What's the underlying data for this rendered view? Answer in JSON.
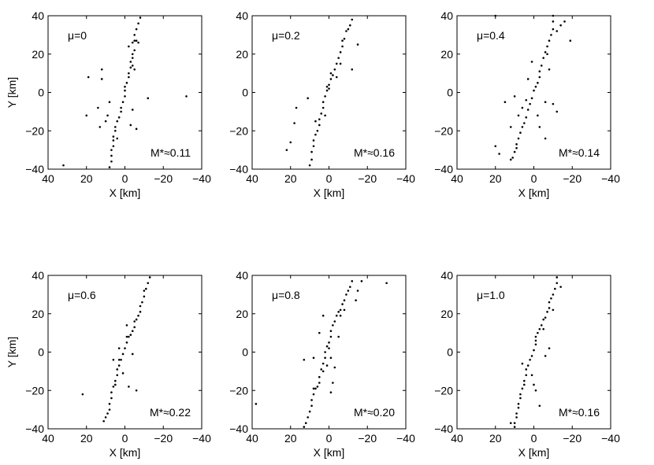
{
  "chart_data": [
    {
      "type": "scatter",
      "annotation_mu": "μ=0",
      "annotation_m": "M*≈0.11",
      "xlabel": "X [km]",
      "ylabel": "Y [km]",
      "xlim": [
        40,
        -40
      ],
      "ylim": [
        -40,
        40
      ],
      "xticks": [
        "40",
        "20",
        "0",
        "−20",
        "−40"
      ],
      "yticks": [
        "40",
        "20",
        "0",
        "−20",
        "−40"
      ],
      "points": [
        [
          -8,
          39
        ],
        [
          -7,
          36
        ],
        [
          -6,
          33
        ],
        [
          -5,
          30
        ],
        [
          -6,
          27
        ],
        [
          -5,
          27
        ],
        [
          -7,
          26
        ],
        [
          -4,
          26
        ],
        [
          -5,
          22
        ],
        [
          -4,
          20
        ],
        [
          -4,
          18
        ],
        [
          -3,
          16
        ],
        [
          -4,
          14
        ],
        [
          -3,
          13
        ],
        [
          -2,
          10
        ],
        [
          -2,
          8
        ],
        [
          -1,
          5
        ],
        [
          0,
          3
        ],
        [
          0,
          1
        ],
        [
          0,
          -2
        ],
        [
          1,
          -5
        ],
        [
          2,
          -8
        ],
        [
          2,
          -10
        ],
        [
          3,
          -13
        ],
        [
          4,
          -15
        ],
        [
          5,
          -18
        ],
        [
          5,
          -20
        ],
        [
          6,
          -23
        ],
        [
          6,
          -25
        ],
        [
          6,
          -28
        ],
        [
          7,
          -30
        ],
        [
          7,
          -33
        ],
        [
          7,
          -36
        ],
        [
          8,
          -39
        ],
        [
          -5,
          12
        ],
        [
          -2,
          24
        ],
        [
          8,
          -5
        ],
        [
          9,
          -12
        ],
        [
          10,
          -15
        ],
        [
          12,
          12
        ],
        [
          14,
          -8
        ],
        [
          13,
          -18
        ],
        [
          19,
          8
        ],
        [
          20,
          -12
        ],
        [
          12,
          7
        ],
        [
          -12,
          -3
        ],
        [
          -32,
          -2
        ],
        [
          -3,
          -17
        ],
        [
          -6,
          -19
        ],
        [
          -4,
          -9
        ],
        [
          32,
          -38
        ],
        [
          4,
          -24
        ]
      ],
      "grid": false,
      "legend": "none"
    },
    {
      "type": "scatter",
      "annotation_mu": "μ=0.2",
      "annotation_m": "M*≈0.16",
      "xlabel": "X [km]",
      "ylabel": "Y [km]",
      "xlim": [
        40,
        -40
      ],
      "ylim": [
        -40,
        40
      ],
      "xticks": [
        "40",
        "20",
        "0",
        "−20",
        "−40"
      ],
      "yticks": [
        "40",
        "20",
        "0",
        "−20",
        "−40"
      ],
      "points": [
        [
          -12,
          38
        ],
        [
          -11,
          35
        ],
        [
          -9,
          32
        ],
        [
          -8,
          28
        ],
        [
          -7,
          27
        ],
        [
          -7,
          24
        ],
        [
          -6,
          21
        ],
        [
          -5,
          18
        ],
        [
          -4,
          15
        ],
        [
          -3,
          12
        ],
        [
          -2,
          9
        ],
        [
          -1,
          7
        ],
        [
          0,
          4
        ],
        [
          1,
          3
        ],
        [
          0,
          2
        ],
        [
          1,
          1
        ],
        [
          2,
          -2
        ],
        [
          3,
          -5
        ],
        [
          3,
          -8
        ],
        [
          4,
          -11
        ],
        [
          5,
          -14
        ],
        [
          5,
          -17
        ],
        [
          6,
          -20
        ],
        [
          7,
          -22
        ],
        [
          8,
          -25
        ],
        [
          8,
          -28
        ],
        [
          9,
          -31
        ],
        [
          9,
          -35
        ],
        [
          10,
          -38
        ],
        [
          -4,
          8
        ],
        [
          -1,
          10
        ],
        [
          7,
          -15
        ],
        [
          17,
          -8
        ],
        [
          18,
          -16
        ],
        [
          20,
          -26
        ],
        [
          22,
          -30
        ],
        [
          -12,
          12
        ],
        [
          -15,
          25
        ],
        [
          -10,
          33
        ],
        [
          11,
          -3
        ],
        [
          2,
          -12
        ],
        [
          -6,
          15
        ]
      ],
      "grid": false,
      "legend": "none"
    },
    {
      "type": "scatter",
      "annotation_mu": "μ=0.4",
      "annotation_m": "M*≈0.14",
      "xlabel": "X [km]",
      "ylabel": "Y [km]",
      "xlim": [
        40,
        -40
      ],
      "ylim": [
        -40,
        40
      ],
      "xticks": [
        "40",
        "20",
        "0",
        "−20",
        "−40"
      ],
      "yticks": [
        "40",
        "20",
        "0",
        "−20",
        "−40"
      ],
      "points": [
        [
          -10,
          40
        ],
        [
          -10,
          37
        ],
        [
          -10,
          33
        ],
        [
          -9,
          30
        ],
        [
          -8,
          27
        ],
        [
          -7,
          24
        ],
        [
          -6,
          21
        ],
        [
          -7,
          20
        ],
        [
          -5,
          18
        ],
        [
          -4,
          14
        ],
        [
          -3,
          11
        ],
        [
          -3,
          8
        ],
        [
          -2,
          5
        ],
        [
          -1,
          3
        ],
        [
          0,
          1
        ],
        [
          1,
          -3
        ],
        [
          2,
          -6
        ],
        [
          3,
          -9
        ],
        [
          4,
          -13
        ],
        [
          5,
          -16
        ],
        [
          6,
          -18
        ],
        [
          7,
          -21
        ],
        [
          8,
          -24
        ],
        [
          9,
          -27
        ],
        [
          9,
          -29
        ],
        [
          10,
          -31
        ],
        [
          11,
          -34
        ],
        [
          12,
          -35
        ],
        [
          -12,
          32
        ],
        [
          -14,
          35
        ],
        [
          -19,
          27
        ],
        [
          -16,
          37
        ],
        [
          -8,
          12
        ],
        [
          -6,
          -5
        ],
        [
          -2,
          -12
        ],
        [
          4,
          -4
        ],
        [
          6,
          -8
        ],
        [
          8,
          -12
        ],
        [
          12,
          -18
        ],
        [
          20,
          -28
        ],
        [
          18,
          -32
        ],
        [
          -3,
          -18
        ],
        [
          -6,
          -24
        ],
        [
          -12,
          -10
        ],
        [
          15,
          -5
        ],
        [
          -10,
          -6
        ],
        [
          10,
          -2
        ],
        [
          3,
          7
        ],
        [
          1,
          16
        ],
        [
          20,
          40
        ]
      ],
      "grid": false,
      "legend": "none"
    },
    {
      "type": "scatter",
      "annotation_mu": "μ=0.6",
      "annotation_m": "M*≈0.22",
      "xlabel": "X [km]",
      "ylabel": "Y [km]",
      "xlim": [
        40,
        -40
      ],
      "ylim": [
        -40,
        40
      ],
      "xticks": [
        "40",
        "20",
        "0",
        "−20",
        "−40"
      ],
      "yticks": [
        "40",
        "20",
        "0",
        "−20",
        "−40"
      ],
      "points": [
        [
          -13,
          39
        ],
        [
          -12,
          36
        ],
        [
          -11,
          33
        ],
        [
          -10,
          32
        ],
        [
          -10,
          29
        ],
        [
          -9,
          26
        ],
        [
          -8,
          24
        ],
        [
          -8,
          21
        ],
        [
          -7,
          19
        ],
        [
          -6,
          17
        ],
        [
          -5,
          16
        ],
        [
          -5,
          13
        ],
        [
          -4,
          11
        ],
        [
          -3,
          9
        ],
        [
          -2,
          8
        ],
        [
          -1,
          8
        ],
        [
          -1,
          5
        ],
        [
          0,
          2
        ],
        [
          1,
          -1
        ],
        [
          2,
          -4
        ],
        [
          3,
          -4
        ],
        [
          3,
          -7
        ],
        [
          4,
          -9
        ],
        [
          4,
          -12
        ],
        [
          5,
          -15
        ],
        [
          5,
          -17
        ],
        [
          6,
          -18
        ],
        [
          7,
          -21
        ],
        [
          7,
          -24
        ],
        [
          8,
          -27
        ],
        [
          8,
          -30
        ],
        [
          9,
          -32
        ],
        [
          10,
          -34
        ],
        [
          11,
          -36
        ],
        [
          22,
          -22
        ],
        [
          6,
          -4
        ],
        [
          -6,
          -20
        ],
        [
          -2,
          -18
        ],
        [
          3,
          2
        ],
        [
          -4,
          -1
        ],
        [
          -1,
          14
        ],
        [
          1,
          -11
        ]
      ],
      "grid": false,
      "legend": "none"
    },
    {
      "type": "scatter",
      "annotation_mu": "μ=0.8",
      "annotation_m": "M*≈0.20",
      "xlabel": "X [km]",
      "ylabel": "Y [km]",
      "xlim": [
        40,
        -40
      ],
      "ylim": [
        -40,
        40
      ],
      "xticks": [
        "40",
        "20",
        "0",
        "−20",
        "−40"
      ],
      "yticks": [
        "40",
        "20",
        "0",
        "−20",
        "−40"
      ],
      "points": [
        [
          -12,
          37
        ],
        [
          -11,
          34
        ],
        [
          -10,
          32
        ],
        [
          -9,
          30
        ],
        [
          -8,
          27
        ],
        [
          -7,
          25
        ],
        [
          -6,
          22
        ],
        [
          -5,
          21
        ],
        [
          -4,
          19
        ],
        [
          -3,
          16
        ],
        [
          -2,
          14
        ],
        [
          -1,
          11
        ],
        [
          -1,
          8
        ],
        [
          0,
          5
        ],
        [
          1,
          3
        ],
        [
          0,
          2
        ],
        [
          2,
          0
        ],
        [
          2,
          -3
        ],
        [
          3,
          -6
        ],
        [
          4,
          -9
        ],
        [
          3,
          -10
        ],
        [
          5,
          -13
        ],
        [
          5,
          -16
        ],
        [
          6,
          -18
        ],
        [
          7,
          -19
        ],
        [
          8,
          -19
        ],
        [
          8,
          -22
        ],
        [
          9,
          -25
        ],
        [
          9,
          -28
        ],
        [
          10,
          -31
        ],
        [
          11,
          -34
        ],
        [
          12,
          -37
        ],
        [
          13,
          -39
        ],
        [
          -30,
          36
        ],
        [
          -17,
          37
        ],
        [
          -15,
          32
        ],
        [
          -14,
          27
        ],
        [
          -8,
          22
        ],
        [
          -6,
          19
        ],
        [
          -5,
          8
        ],
        [
          -1,
          -3
        ],
        [
          -2,
          -16
        ],
        [
          -1,
          -21
        ],
        [
          -3,
          -8
        ],
        [
          13,
          -4
        ],
        [
          5,
          10
        ],
        [
          38,
          -27
        ],
        [
          8,
          -3
        ],
        [
          3,
          19
        ],
        [
          1,
          -7
        ]
      ],
      "grid": false,
      "legend": "none"
    },
    {
      "type": "scatter",
      "annotation_mu": "μ=1.0",
      "annotation_m": "M*≈0.16",
      "xlabel": "X [km]",
      "ylabel": "Y [km]",
      "xlim": [
        40,
        -40
      ],
      "ylim": [
        -40,
        40
      ],
      "xticks": [
        "40",
        "20",
        "0",
        "−20",
        "−40"
      ],
      "yticks": [
        "40",
        "20",
        "0",
        "−20",
        "−40"
      ],
      "points": [
        [
          -12,
          39
        ],
        [
          -12,
          36
        ],
        [
          -11,
          33
        ],
        [
          -10,
          30
        ],
        [
          -9,
          28
        ],
        [
          -8,
          26
        ],
        [
          -8,
          23
        ],
        [
          -7,
          21
        ],
        [
          -6,
          18
        ],
        [
          -5,
          17
        ],
        [
          -4,
          14
        ],
        [
          -3,
          12
        ],
        [
          -2,
          10
        ],
        [
          -1,
          8
        ],
        [
          -1,
          6
        ],
        [
          -1,
          4
        ],
        [
          0,
          1
        ],
        [
          1,
          -2
        ],
        [
          2,
          -4
        ],
        [
          3,
          -7
        ],
        [
          4,
          -9
        ],
        [
          4,
          -12
        ],
        [
          5,
          -15
        ],
        [
          5,
          -17
        ],
        [
          6,
          -19
        ],
        [
          7,
          -22
        ],
        [
          7,
          -24
        ],
        [
          8,
          -27
        ],
        [
          8,
          -29
        ],
        [
          9,
          -32
        ],
        [
          9,
          -34
        ],
        [
          10,
          -37
        ],
        [
          10,
          -39
        ],
        [
          -3,
          -28
        ],
        [
          -1,
          -20
        ],
        [
          0,
          -17
        ],
        [
          1,
          -12
        ],
        [
          -6,
          -2
        ],
        [
          -8,
          2
        ],
        [
          -5,
          12
        ],
        [
          -10,
          22
        ],
        [
          -14,
          34
        ],
        [
          6,
          -6
        ],
        [
          12,
          -37
        ]
      ],
      "grid": false,
      "legend": "none"
    }
  ]
}
